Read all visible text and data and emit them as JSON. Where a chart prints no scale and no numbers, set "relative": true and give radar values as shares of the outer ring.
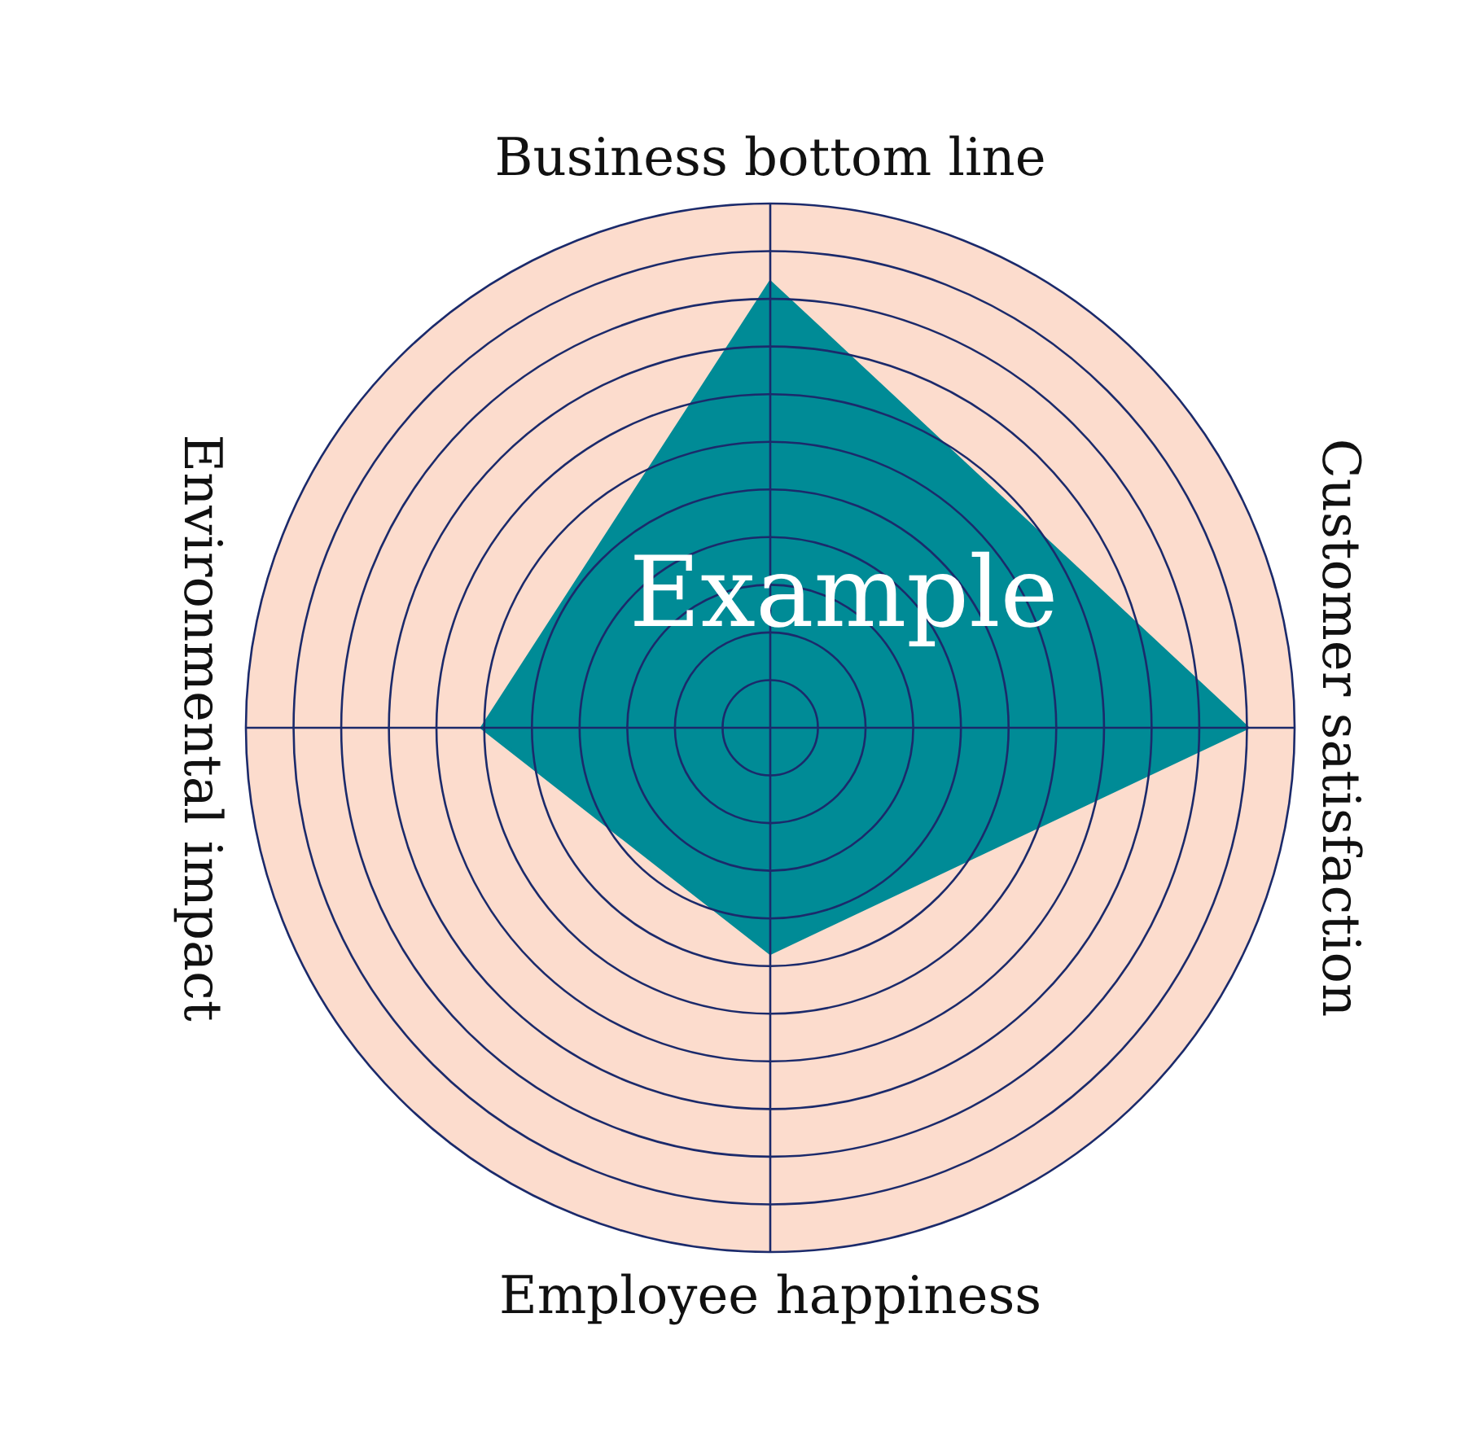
{
  "chart_data": {
    "type": "radar",
    "relative": true,
    "grid": true,
    "categories": [
      "Business bottom line",
      "Customer satisfaction",
      "Employee happiness",
      "Environmental impact"
    ],
    "annotations": [
      "Example"
    ],
    "series": [
      {
        "color": "#008b96",
        "values": [
          0.85,
          0.91,
          0.43,
          0.55
        ]
      }
    ]
  }
}
